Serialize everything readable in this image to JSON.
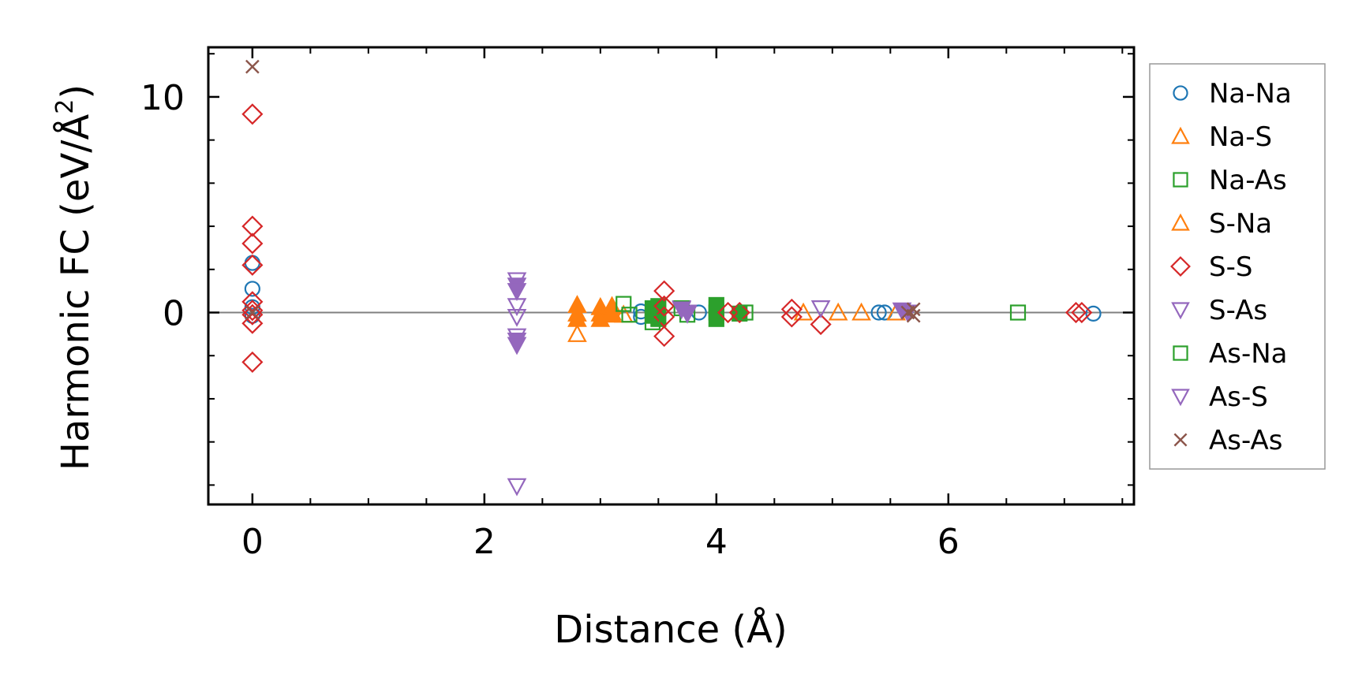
{
  "chart_data": {
    "type": "scatter",
    "xlabel": "Distance (Å)",
    "ylabel_main": "Harmonic FC (eV/Å",
    "ylabel_sup": "2",
    "ylabel_close": ")",
    "xlim": [
      -0.38,
      7.6
    ],
    "ylim": [
      -8.9,
      12.3
    ],
    "x_ticks": [
      0,
      2,
      4,
      6
    ],
    "x_tick_labels": [
      "0",
      "2",
      "4",
      "6"
    ],
    "x_minor_step": 0.5,
    "y_ticks": [
      0,
      10
    ],
    "y_tick_labels": [
      "0",
      "10"
    ],
    "y_minor_step": 2,
    "zero_line": true,
    "grid": false,
    "legend_position": "outside-right",
    "series": [
      {
        "name": "Na-Na",
        "marker": "circle",
        "color": "#1f77b4",
        "filled": false,
        "points": [
          [
            0,
            2.3
          ],
          [
            0,
            1.1
          ],
          [
            0,
            0.25
          ],
          [
            0,
            -0.15
          ],
          [
            3.35,
            0.05
          ],
          [
            3.35,
            -0.2
          ],
          [
            3.85,
            0
          ],
          [
            5.4,
            0
          ],
          [
            5.45,
            0
          ],
          [
            7.25,
            -0.05
          ]
        ]
      },
      {
        "name": "Na-S",
        "marker": "triangle-up",
        "color": "#ff7f0e",
        "filled": true,
        "points": [
          [
            2.8,
            0.35
          ],
          [
            2.8,
            -0.05
          ],
          [
            2.8,
            -0.3
          ],
          [
            3.0,
            0.25
          ],
          [
            3.0,
            -0.05
          ],
          [
            3.0,
            -0.3
          ],
          [
            3.1,
            0.3
          ],
          [
            3.1,
            -0.1
          ]
        ]
      },
      {
        "name": "Na-As",
        "marker": "square",
        "color": "#2ca02c",
        "filled": true,
        "points": [
          [
            3.45,
            0.2
          ],
          [
            3.45,
            -0.15
          ],
          [
            3.5,
            0.3
          ],
          [
            3.5,
            -0.3
          ],
          [
            4.0,
            0.35
          ],
          [
            4.0,
            0.0
          ],
          [
            4.0,
            -0.3
          ],
          [
            4.2,
            -0.05
          ]
        ]
      },
      {
        "name": "S-Na",
        "marker": "triangle-up",
        "color": "#ff7f0e",
        "filled": false,
        "points": [
          [
            2.8,
            -1.0
          ],
          [
            3.1,
            0.0
          ],
          [
            3.2,
            -0.1
          ],
          [
            4.75,
            0.0
          ],
          [
            5.05,
            0.0
          ],
          [
            5.25,
            0.0
          ],
          [
            5.55,
            0.0
          ]
        ]
      },
      {
        "name": "S-S",
        "marker": "diamond",
        "color": "#d62728",
        "filled": false,
        "points": [
          [
            0,
            9.2
          ],
          [
            0,
            4.0
          ],
          [
            0,
            3.2
          ],
          [
            0,
            2.2
          ],
          [
            0,
            0.5
          ],
          [
            0,
            0.1
          ],
          [
            0,
            -0.1
          ],
          [
            0,
            -0.5
          ],
          [
            0,
            -2.3
          ],
          [
            3.55,
            1.0
          ],
          [
            3.55,
            0.3
          ],
          [
            3.55,
            -0.2
          ],
          [
            3.55,
            -1.1
          ],
          [
            4.1,
            0.0
          ],
          [
            4.2,
            0.0
          ],
          [
            4.65,
            0.15
          ],
          [
            4.65,
            -0.2
          ],
          [
            4.9,
            -0.55
          ],
          [
            7.1,
            0.0
          ],
          [
            7.15,
            0.0
          ]
        ]
      },
      {
        "name": "S-As",
        "marker": "triangle-down",
        "color": "#9467bd",
        "filled": false,
        "points": [
          [
            2.28,
            1.5
          ],
          [
            2.28,
            0.3
          ],
          [
            2.28,
            -0.2
          ],
          [
            2.28,
            -1.1
          ],
          [
            2.28,
            -8.05
          ],
          [
            3.7,
            0.2
          ],
          [
            3.75,
            0.0
          ],
          [
            4.9,
            0.2
          ]
        ]
      },
      {
        "name": "As-Na",
        "marker": "square",
        "color": "#2ca02c",
        "filled": false,
        "points": [
          [
            3.2,
            0.4
          ],
          [
            3.25,
            -0.1
          ],
          [
            3.45,
            -0.45
          ],
          [
            3.7,
            0.2
          ],
          [
            3.75,
            -0.1
          ],
          [
            4.25,
            0.0
          ],
          [
            6.6,
            0.0
          ]
        ]
      },
      {
        "name": "As-S",
        "marker": "triangle-down",
        "color": "#9467bd",
        "filled": true,
        "points": [
          [
            2.28,
            1.25
          ],
          [
            2.28,
            1.0
          ],
          [
            2.28,
            -1.3
          ],
          [
            2.28,
            -1.5
          ],
          [
            3.7,
            0.15
          ],
          [
            3.75,
            -0.05
          ],
          [
            5.6,
            0.1
          ],
          [
            5.65,
            0.0
          ]
        ]
      },
      {
        "name": "As-As",
        "marker": "x",
        "color": "#8c564b",
        "filled": false,
        "points": [
          [
            0,
            11.4
          ],
          [
            0,
            0.0
          ],
          [
            5.65,
            0.0
          ],
          [
            5.7,
            0.15
          ],
          [
            5.7,
            -0.15
          ]
        ]
      }
    ]
  }
}
